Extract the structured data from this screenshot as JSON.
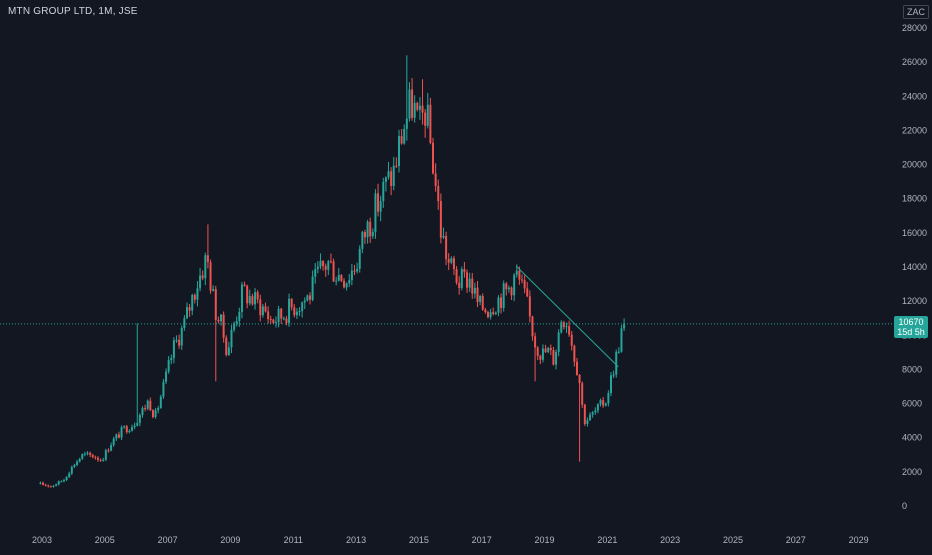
{
  "header": {
    "title": "MTN GROUP LTD, 1M, JSE",
    "currency": "ZAC"
  },
  "price_label": {
    "value": "10670",
    "countdown": "15d 5h"
  },
  "chart_data": {
    "type": "candlestick",
    "title": "MTN GROUP LTD, 1M, JSE",
    "currency": "ZAC",
    "x_ticks": [
      "2003",
      "2005",
      "2007",
      "2009",
      "2011",
      "2013",
      "2015",
      "2017",
      "2019",
      "2021",
      "2023",
      "2025",
      "2027",
      "2029"
    ],
    "y_ticks": [
      0,
      2000,
      4000,
      6000,
      8000,
      10000,
      12000,
      14000,
      16000,
      18000,
      20000,
      22000,
      24000,
      26000,
      28000
    ],
    "ylim": [
      -600,
      28300
    ],
    "xlim": [
      2002.3,
      2030.0
    ],
    "last_price": 10670,
    "up_color": "#26a69a",
    "down_color": "#ef5350",
    "trendline": {
      "start": [
        2018.1,
        14050
      ],
      "end": [
        2021.35,
        8150
      ],
      "color": "#26a69a"
    },
    "guide_points": [
      [
        2002.95,
        1300
      ],
      [
        2003.3,
        1150
      ],
      [
        2003.7,
        1550
      ],
      [
        2004.0,
        2400
      ],
      [
        2004.3,
        3000
      ],
      [
        2004.6,
        2950
      ],
      [
        2004.9,
        2700
      ],
      [
        2005.2,
        3700
      ],
      [
        2005.6,
        4500
      ],
      [
        2005.9,
        4800
      ],
      [
        2006.2,
        5600
      ],
      [
        2006.4,
        6200
      ],
      [
        2006.6,
        5200
      ],
      [
        2006.9,
        7200
      ],
      [
        2007.2,
        9300
      ],
      [
        2007.5,
        10500
      ],
      [
        2007.8,
        12300
      ],
      [
        2008.0,
        13400
      ],
      [
        2008.25,
        14600
      ],
      [
        2008.5,
        11600
      ],
      [
        2008.7,
        10600
      ],
      [
        2008.9,
        9100
      ],
      [
        2009.1,
        10600
      ],
      [
        2009.4,
        12600
      ],
      [
        2009.7,
        12100
      ],
      [
        2010.0,
        11700
      ],
      [
        2010.3,
        10900
      ],
      [
        2010.6,
        11100
      ],
      [
        2010.9,
        11600
      ],
      [
        2011.2,
        11900
      ],
      [
        2011.5,
        12300
      ],
      [
        2011.8,
        13600
      ],
      [
        2012.1,
        14300
      ],
      [
        2012.4,
        13600
      ],
      [
        2012.7,
        13400
      ],
      [
        2013.0,
        14200
      ],
      [
        2013.3,
        16100
      ],
      [
        2013.6,
        17300
      ],
      [
        2013.9,
        18600
      ],
      [
        2014.2,
        19600
      ],
      [
        2014.5,
        22200
      ],
      [
        2014.8,
        23700
      ],
      [
        2015.0,
        22000
      ],
      [
        2015.2,
        23300
      ],
      [
        2015.45,
        20200
      ],
      [
        2015.7,
        16200
      ],
      [
        2015.95,
        14200
      ],
      [
        2016.3,
        13100
      ],
      [
        2016.6,
        13400
      ],
      [
        2016.9,
        11700
      ],
      [
        2017.2,
        11600
      ],
      [
        2017.5,
        12100
      ],
      [
        2017.8,
        12600
      ],
      [
        2018.1,
        13600
      ],
      [
        2018.4,
        12100
      ],
      [
        2018.7,
        9600
      ],
      [
        2018.9,
        8900
      ],
      [
        2019.1,
        9100
      ],
      [
        2019.3,
        8600
      ],
      [
        2019.55,
        11200
      ],
      [
        2019.75,
        10800
      ],
      [
        2019.9,
        9200
      ],
      [
        2020.1,
        7600
      ],
      [
        2020.25,
        5000
      ],
      [
        2020.45,
        5200
      ],
      [
        2020.7,
        5700
      ],
      [
        2020.95,
        6200
      ],
      [
        2021.15,
        7700
      ],
      [
        2021.35,
        9300
      ],
      [
        2021.5,
        10670
      ]
    ],
    "extremes": [
      [
        2006.0,
        10700
      ],
      [
        2008.3,
        16500
      ],
      [
        2008.55,
        7300
      ],
      [
        2014.65,
        26400
      ],
      [
        2015.1,
        25000
      ],
      [
        2018.15,
        14100
      ],
      [
        2018.7,
        7300
      ],
      [
        2020.15,
        2600
      ]
    ]
  }
}
